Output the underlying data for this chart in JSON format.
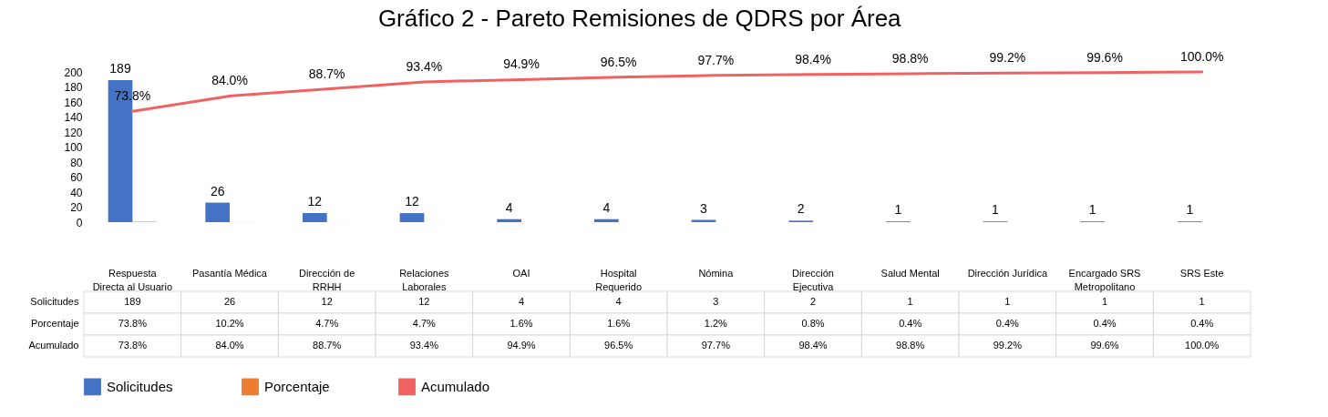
{
  "chart_data": {
    "type": "bar",
    "title": "Gráfico 2 - Pareto Remisiones de QDRS por Área",
    "categories": [
      "Respuesta Directa al Usuario",
      "Pasantía Médica",
      "Dirección de RRHH",
      "Relaciones Laborales",
      "OAI",
      "Hospital Requerido",
      "Nómina",
      "Dirección Ejecutiva",
      "Salud Mental",
      "Dirección Jurídica",
      "Encargado SRS Metropolitano",
      "SRS Este"
    ],
    "series": [
      {
        "name": "Solicitudes",
        "color": "#4472c4",
        "values": [
          189,
          26,
          12,
          12,
          4,
          4,
          3,
          2,
          1,
          1,
          1,
          1
        ],
        "value_labels": [
          "189",
          "26",
          "12",
          "12",
          "4",
          "4",
          "3",
          "2",
          "1",
          "1",
          "1",
          "1"
        ]
      },
      {
        "name": "Porcentaje",
        "color": "#ed7d31",
        "values": [
          0.738,
          0.102,
          0.047,
          0.047,
          0.016,
          0.016,
          0.012,
          0.008,
          0.004,
          0.004,
          0.004,
          0.004
        ],
        "value_labels": [
          "73.8%",
          "10.2%",
          "4.7%",
          "4.7%",
          "1.6%",
          "1.6%",
          "1.2%",
          "0.8%",
          "0.4%",
          "0.4%",
          "0.4%",
          "0.4%"
        ]
      },
      {
        "name": "Acumulado",
        "type": "line",
        "axis": "y2",
        "color": "#f06262",
        "values": [
          73.8,
          84.0,
          88.7,
          93.4,
          94.9,
          96.5,
          97.7,
          98.4,
          98.8,
          99.2,
          99.6,
          100.0
        ],
        "value_labels": [
          "73.8%",
          "84.0%",
          "88.7%",
          "93.4%",
          "94.9%",
          "96.5%",
          "97.7%",
          "98.4%",
          "98.8%",
          "99.2%",
          "99.6%",
          "100.0%"
        ]
      }
    ],
    "ylim": [
      0,
      200
    ],
    "yticks": [
      0,
      20,
      40,
      60,
      80,
      100,
      120,
      140,
      160,
      180,
      200
    ],
    "grid": false,
    "legend": "bottom"
  }
}
